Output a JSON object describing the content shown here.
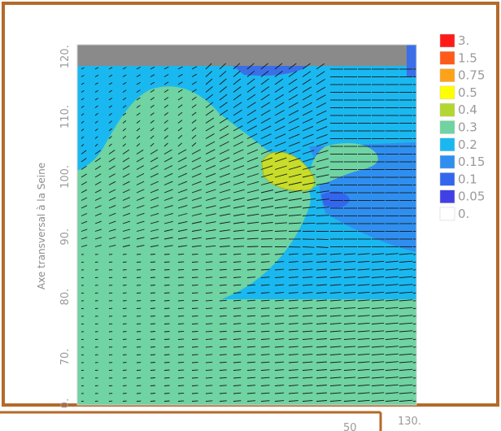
{
  "chart_data": {
    "type": "contour",
    "title": "",
    "ylabel": "Axe transversal à la Seine",
    "xlabel": "",
    "y_ticks": [
      "70.",
      "80.",
      "90.",
      "100.",
      "110.",
      "120."
    ],
    "y_origin_label": "0.",
    "x_end_label": "130.",
    "x_partial_label": "50",
    "ylim": [
      62,
      122
    ],
    "legend": {
      "placement": "right",
      "levels": [
        "3.",
        "1.5",
        "0.75",
        "0.5",
        "0.4",
        "0.3",
        "0.2",
        "0.15",
        "0.1",
        "0.05",
        "0."
      ],
      "colors": [
        "#ff1a1a",
        "#ff5a1a",
        "#ffa21a",
        "#ffff00",
        "#b4d630",
        "#6fd3a2",
        "#1ab8f0",
        "#2f8ff0",
        "#3366ee",
        "#4040e6",
        "#ffffff"
      ]
    },
    "field": {
      "background_color": "#6fd3a2",
      "dry_band_color": "#8a8a8a",
      "vector_color": "#1a1a1a"
    }
  }
}
